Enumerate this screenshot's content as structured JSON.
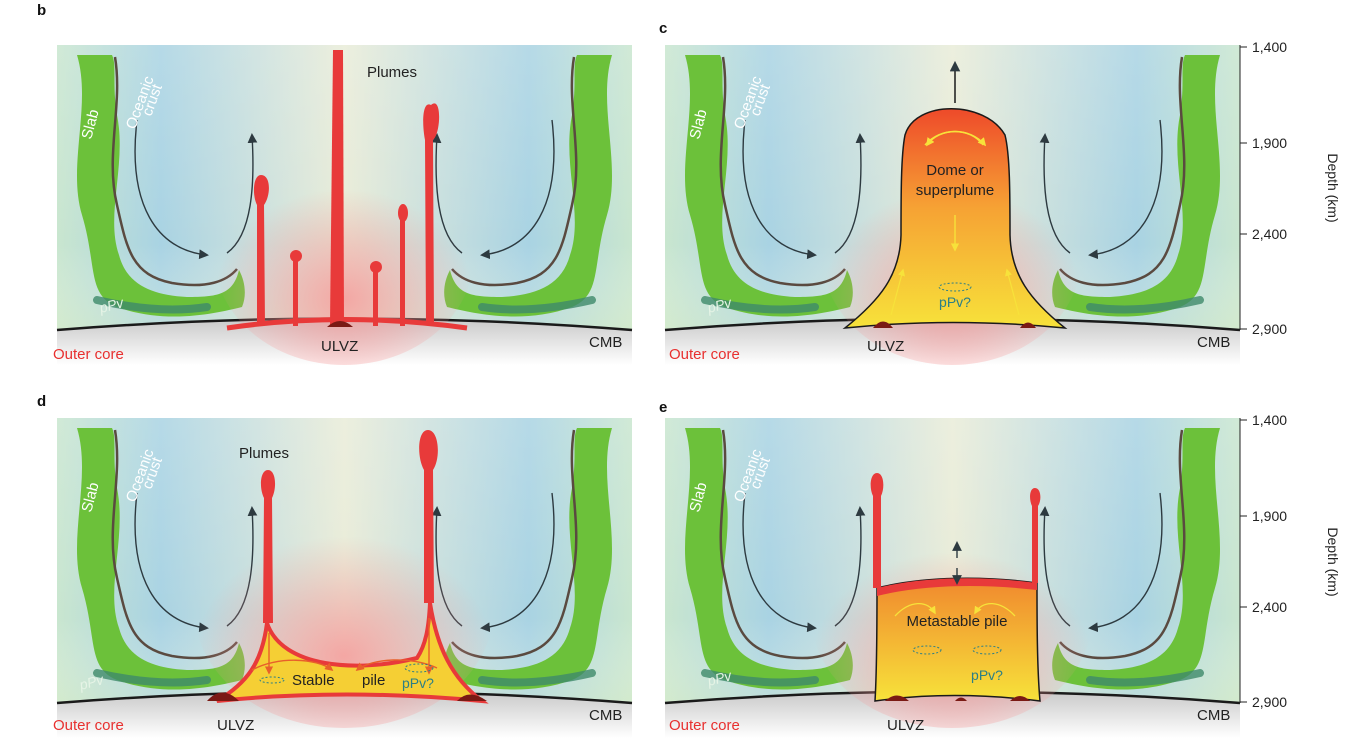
{
  "panels": [
    {
      "letter": "b",
      "plumes_label": "Plumes",
      "ulvz": "ULVZ",
      "outer_core": "Outer core",
      "cmb": "CMB",
      "slab": "Slab",
      "crust1": "Oceanic",
      "crust2": "crust",
      "ppv": "pPv"
    },
    {
      "letter": "c",
      "dome1": "Dome or",
      "dome2": "superplume",
      "ppvq": "pPv?",
      "ulvz": "ULVZ",
      "outer_core": "Outer core",
      "cmb": "CMB",
      "slab": "Slab",
      "crust1": "Oceanic",
      "crust2": "crust",
      "ppv": "pPv"
    },
    {
      "letter": "d",
      "plumes_label": "Plumes",
      "stable": "Stable",
      "pile": "pile",
      "ppvq": "pPv?",
      "ulvz": "ULVZ",
      "outer_core": "Outer core",
      "cmb": "CMB",
      "slab": "Slab",
      "crust1": "Oceanic",
      "crust2": "crust",
      "ppv": "pPv"
    },
    {
      "letter": "e",
      "meta": "Metastable pile",
      "ppvq": "pPv?",
      "ulvz": "ULVZ",
      "outer_core": "Outer core",
      "cmb": "CMB",
      "slab": "Slab",
      "crust1": "Oceanic",
      "crust2": "crust",
      "ppv": "pPv"
    }
  ],
  "depth_axis": {
    "title": "Depth (km)",
    "ticks": [
      "1,400",
      "1,900",
      "2,400",
      "2,900"
    ]
  },
  "colors": {
    "slab": "#6cc13a",
    "plume": "#e83a3a",
    "pile_top": "#ee5a2a",
    "pile_bottom": "#f7d431",
    "mantle_blue": "#9fcde3",
    "mantle_green": "#d9ecc8",
    "ulvz": "#7a1a14"
  }
}
